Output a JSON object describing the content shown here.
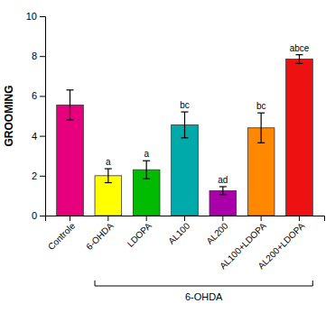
{
  "chart_data": {
    "type": "bar",
    "categories": [
      "Controle",
      "6-OHDA",
      "LDOPA",
      "AL100",
      "AL200",
      "AL100+LDOPA",
      "AL200+LDOPA"
    ],
    "values": [
      5.55,
      2.0,
      2.3,
      4.55,
      1.25,
      4.4,
      7.85
    ],
    "errors": [
      0.75,
      0.35,
      0.45,
      0.65,
      0.2,
      0.75,
      0.22
    ],
    "colors": [
      "#E6007E",
      "#FFFF00",
      "#00BB00",
      "#00AAAA",
      "#AA00AA",
      "#FF8800",
      "#EE1111"
    ],
    "annotations": [
      {
        "category": "6-OHDA",
        "text": "a"
      },
      {
        "category": "LDOPA",
        "text": "a"
      },
      {
        "category": "AL100",
        "text": "bc"
      },
      {
        "category": "AL200",
        "text": "ad"
      },
      {
        "category": "AL100+LDOPA",
        "text": "bc"
      },
      {
        "category": "AL200+LDOPA",
        "text": "abce"
      }
    ],
    "bracket": {
      "label": "6-OHDA",
      "from": "6-OHDA",
      "to": "AL200+LDOPA"
    },
    "ylabel": "GROOMING",
    "ylim": [
      0,
      10
    ],
    "yticks": [
      0,
      2,
      4,
      6,
      8,
      10
    ],
    "grid": false
  }
}
